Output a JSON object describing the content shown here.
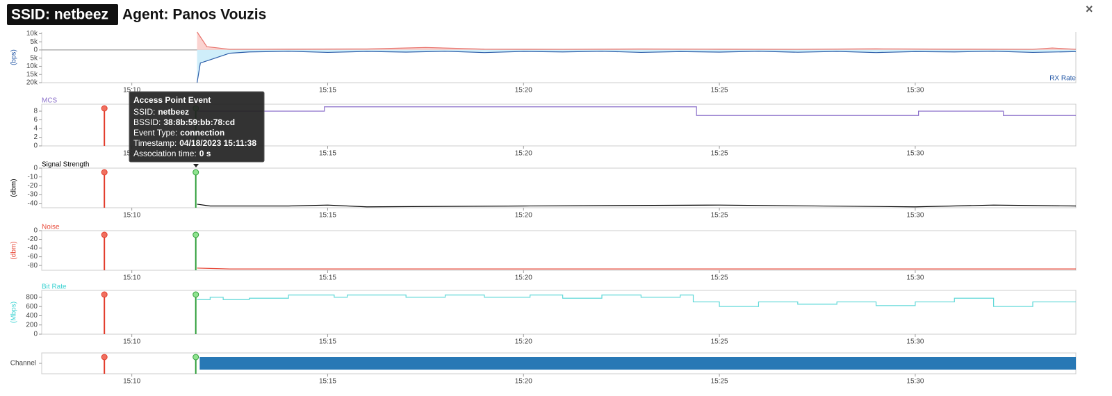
{
  "header": {
    "ssid": "SSID: netbeez",
    "agent": "Agent: Panos Vouzis",
    "close": "×"
  },
  "tooltip": {
    "title": "Access Point Event",
    "rows": [
      {
        "label": "SSID:",
        "value": "netbeez"
      },
      {
        "label": "BSSID:",
        "value": "38:8b:59:bb:78:cd"
      },
      {
        "label": "Event Type:",
        "value": "connection"
      },
      {
        "label": "Timestamp:",
        "value": "04/18/2023 15:11:38"
      },
      {
        "label": "Association time:",
        "value": "0 s"
      }
    ]
  },
  "events": [
    {
      "time": "15:09:18",
      "color": "#e23a2a",
      "fill": "#f0705f"
    },
    {
      "time": "15:11:38",
      "color": "#2f9e3a",
      "fill": "#8fe38f"
    }
  ],
  "chart_data": [
    {
      "type": "line",
      "ylabel": "(bps)",
      "ylabel_color": "#2a5ca8",
      "xlim": [
        "15:07:42",
        "15:34:06"
      ],
      "xticks": [
        "15:10",
        "15:15",
        "15:20",
        "15:25",
        "15:30"
      ],
      "ylim": [
        -20000,
        11000
      ],
      "yticks": [
        {
          "value": 10000,
          "label": "10k"
        },
        {
          "value": 5000,
          "label": "5k"
        },
        0,
        {
          "value": -5000,
          "label": "5k"
        },
        {
          "value": -10000,
          "label": "10k"
        },
        {
          "value": -15000,
          "label": "15k"
        },
        {
          "value": -20000,
          "label": "20k"
        }
      ],
      "zero_line": true,
      "fill": true,
      "series": [
        {
          "color": "#e8736c",
          "fill_color": "#fbd3d0",
          "x": [
            "15:11:40",
            "15:11:55",
            "15:12:30",
            "15:14:00",
            "15:16:00",
            "15:17:30",
            "15:19:00",
            "15:21:00",
            "15:23:00",
            "15:25:00",
            "15:27:00",
            "15:29:00",
            "15:31:00",
            "15:33:00",
            "15:33:30",
            "15:34:06"
          ],
          "values": [
            11000,
            2000,
            400,
            500,
            600,
            1500,
            500,
            400,
            600,
            500,
            400,
            700,
            500,
            400,
            1200,
            400
          ]
        },
        {
          "name": "RX Rate",
          "color": "#2a5ca8",
          "fill_color": "#cfeefa",
          "x": [
            "15:11:40",
            "15:11:45",
            "15:12:00",
            "15:12:30",
            "15:13:00",
            "15:14:00",
            "15:15:00",
            "15:16:00",
            "15:17:00",
            "15:18:00",
            "15:19:00",
            "15:20:00",
            "15:21:00",
            "15:22:00",
            "15:23:00",
            "15:24:00",
            "15:25:00",
            "15:26:00",
            "15:27:00",
            "15:28:00",
            "15:29:00",
            "15:30:00",
            "15:31:00",
            "15:32:00",
            "15:33:00",
            "15:34:06"
          ],
          "values": [
            -20000,
            -8000,
            -6000,
            -2000,
            -1200,
            -800,
            -1500,
            -900,
            -1300,
            -800,
            -1600,
            -900,
            -1200,
            -800,
            -1500,
            -1000,
            -1300,
            -800,
            -1400,
            -900,
            -1600,
            -1000,
            -1200,
            -800,
            -1500,
            -1000
          ]
        }
      ]
    },
    {
      "type": "line",
      "title": "MCS",
      "title_color": "#8a6fc9",
      "show_events": true,
      "step": true,
      "xlim": [
        "15:07:42",
        "15:34:06"
      ],
      "xticks": [
        "15:10",
        "15:15",
        "15:20",
        "15:25",
        "15:30"
      ],
      "ylim": [
        0,
        9.6
      ],
      "yticks": [
        0,
        2,
        4,
        6,
        8
      ],
      "series": [
        {
          "color": "#8a6fc9",
          "x": [
            "15:11:40",
            "15:14:55",
            "15:24:25",
            "15:30:05",
            "15:32:15",
            "15:34:06"
          ],
          "values": [
            8,
            9,
            7,
            8,
            7,
            7
          ]
        }
      ]
    },
    {
      "type": "line",
      "title": "Signal Strength",
      "title_color": "#000000",
      "ylabel": "(dbm)",
      "ylabel_color": "#000000",
      "show_events": true,
      "xlim": [
        "15:07:42",
        "15:34:06"
      ],
      "xticks": [
        "15:10",
        "15:15",
        "15:20",
        "15:25",
        "15:30"
      ],
      "ylim": [
        -45,
        0
      ],
      "yticks": [
        0,
        -10,
        -20,
        -30,
        -40
      ],
      "series": [
        {
          "color": "#000000",
          "x": [
            "15:11:40",
            "15:12:00",
            "15:14:00",
            "15:15:00",
            "15:16:00",
            "15:20:00",
            "15:25:00",
            "15:30:00",
            "15:32:00",
            "15:34:06"
          ],
          "values": [
            -41,
            -43,
            -43,
            -42,
            -44,
            -43,
            -42,
            -44,
            -42,
            -43
          ]
        }
      ]
    },
    {
      "type": "line",
      "title": "Noise",
      "title_color": "#e84a3a",
      "ylabel": "(dbm)",
      "ylabel_color": "#e84a3a",
      "show_events": true,
      "xlim": [
        "15:07:42",
        "15:34:06"
      ],
      "xticks": [
        "15:10",
        "15:15",
        "15:20",
        "15:25",
        "15:30"
      ],
      "ylim": [
        -91,
        0
      ],
      "yticks": [
        0,
        -20,
        -40,
        -60,
        -80
      ],
      "series": [
        {
          "color": "#e84a3a",
          "x": [
            "15:11:40",
            "15:12:30",
            "15:20:00",
            "15:34:06"
          ],
          "values": [
            -86,
            -88,
            -88,
            -88
          ]
        }
      ]
    },
    {
      "type": "line",
      "title": "Bit Rate",
      "title_color": "#3fd3d3",
      "ylabel": "(Mbps)",
      "ylabel_color": "#3fd3d3",
      "show_events": true,
      "step": true,
      "xlim": [
        "15:07:42",
        "15:34:06"
      ],
      "xticks": [
        "15:10",
        "15:15",
        "15:20",
        "15:25",
        "15:30"
      ],
      "ylim": [
        0,
        950
      ],
      "yticks": [
        0,
        200,
        400,
        600,
        800
      ],
      "series": [
        {
          "color": "#5fd8d8",
          "x": [
            "15:11:40",
            "15:12:00",
            "15:12:20",
            "15:13:00",
            "15:14:00",
            "15:15:10",
            "15:15:30",
            "15:17:00",
            "15:18:00",
            "15:19:00",
            "15:20:10",
            "15:21:00",
            "15:22:00",
            "15:23:00",
            "15:24:00",
            "15:24:20",
            "15:25:00",
            "15:26:00",
            "15:27:00",
            "15:28:00",
            "15:29:00",
            "15:30:00",
            "15:31:00",
            "15:32:00",
            "15:33:00",
            "15:34:06"
          ],
          "values": [
            750,
            800,
            750,
            780,
            850,
            800,
            850,
            800,
            850,
            800,
            850,
            780,
            850,
            800,
            850,
            700,
            600,
            700,
            650,
            700,
            620,
            700,
            780,
            600,
            700,
            700
          ]
        }
      ]
    },
    {
      "type": "timeline",
      "show_events": true,
      "xlim": [
        "15:07:42",
        "15:34:06"
      ],
      "xticks": [
        "15:10",
        "15:15",
        "15:20",
        "15:25",
        "15:30"
      ],
      "categories": [
        "Channel"
      ],
      "color": "#2878b5",
      "bars": [
        {
          "start": "15:11:44",
          "end": "15:34:06"
        }
      ]
    }
  ]
}
